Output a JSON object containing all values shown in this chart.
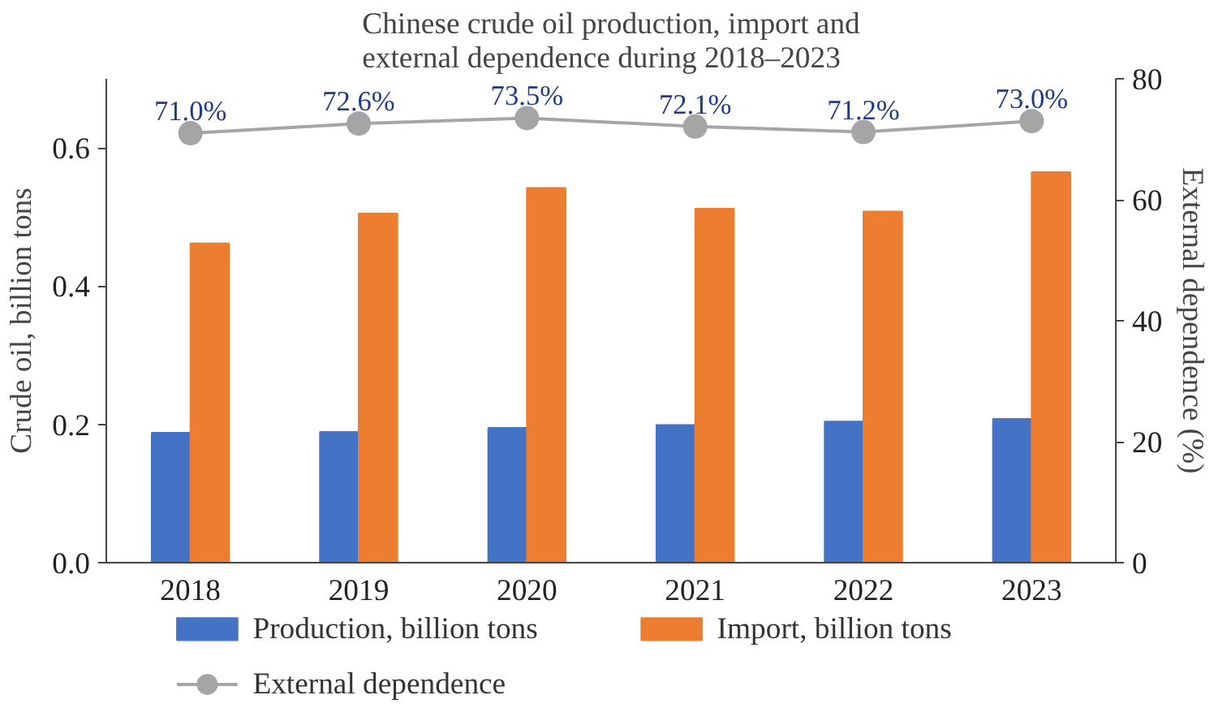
{
  "chart_data": {
    "type": "bar",
    "title": "Chinese crude oil production, import and external dependence during 2018–2023",
    "ylabel": "Crude oil, billion tons",
    "y2label": "External dependence (%)",
    "categories": [
      "2018",
      "2019",
      "2020",
      "2021",
      "2022",
      "2023"
    ],
    "series": [
      {
        "name": "Production, billion tons",
        "color": "#4472c4",
        "values": [
          0.188,
          0.189,
          0.195,
          0.199,
          0.204,
          0.208
        ]
      },
      {
        "name": "Import, billion tons",
        "color": "#ed7d31",
        "values": [
          0.462,
          0.505,
          0.542,
          0.512,
          0.508,
          0.565
        ]
      },
      {
        "name": "External dependence",
        "type": "line",
        "axis": "y2",
        "color": "#a5a5a5",
        "marker": "circle",
        "values": [
          71.0,
          72.6,
          73.5,
          72.1,
          71.2,
          73.0
        ],
        "value_labels": [
          "71.0%",
          "72.6%",
          "73.5%",
          "72.1%",
          "71.2%",
          "73.0%"
        ]
      }
    ],
    "ylim": [
      0,
      0.7
    ],
    "yticks": [
      "0.0",
      0.2,
      0.4,
      0.6
    ],
    "y2lim": [
      0,
      80
    ],
    "y2ticks": [
      0,
      20,
      40,
      60,
      80
    ],
    "grid": false,
    "legend": "bottom"
  }
}
